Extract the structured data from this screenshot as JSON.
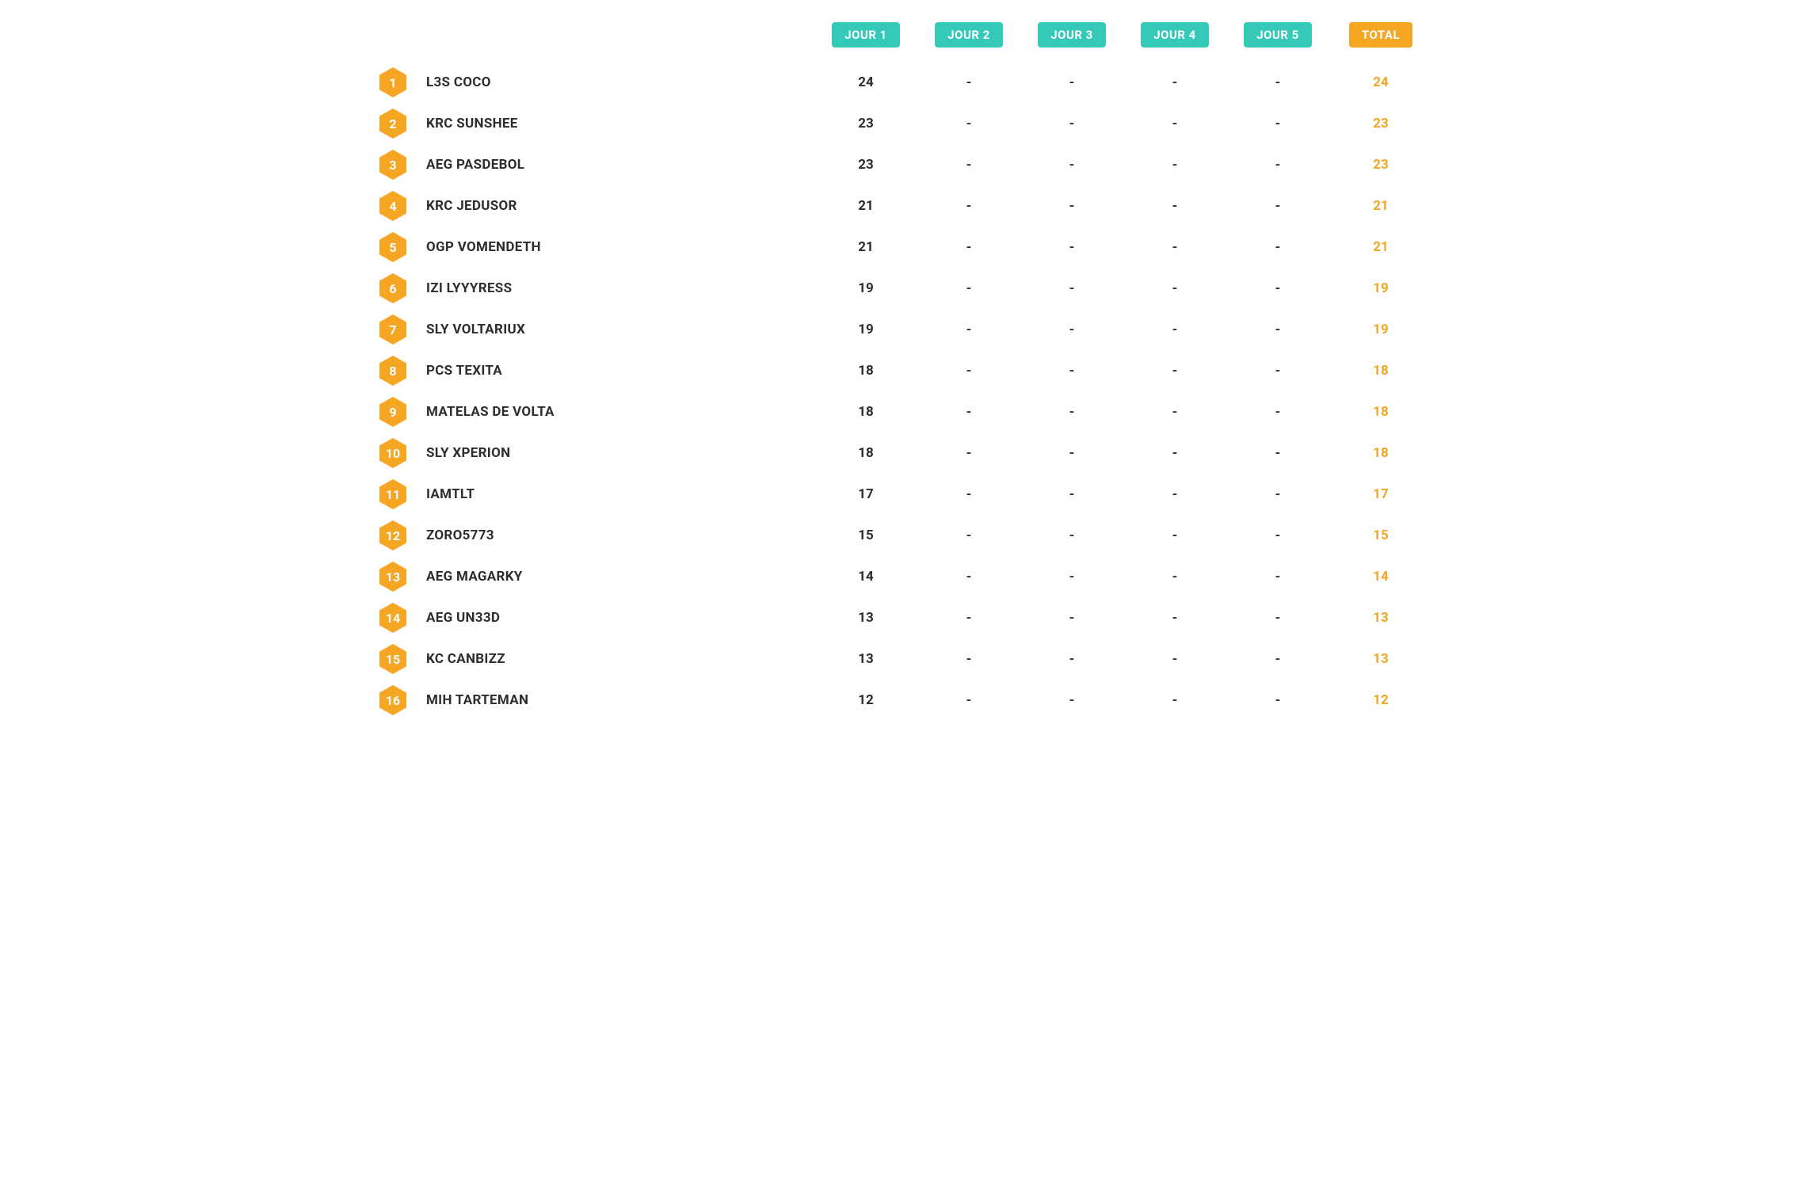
{
  "colors": {
    "day_header_bg": "#35c9b8",
    "total_header_bg": "#f5a623",
    "hexagon_fill": "#f5a623",
    "name_text": "#2d2d2d",
    "score_text": "#2d2d2d",
    "total_text": "#f5a623",
    "background": "#ffffff"
  },
  "table": {
    "type": "table",
    "columns": {
      "rank": "",
      "name": "",
      "day1": "JOUR 1",
      "day2": "JOUR 2",
      "day3": "JOUR 3",
      "day4": "JOUR 4",
      "day5": "JOUR 5",
      "total": "TOTAL"
    },
    "empty_placeholder": "-",
    "rows": [
      {
        "rank": "1",
        "name": "L3S COCO",
        "day1": "24",
        "day2": "-",
        "day3": "-",
        "day4": "-",
        "day5": "-",
        "total": "24"
      },
      {
        "rank": "2",
        "name": "KRC SUNSHEE",
        "day1": "23",
        "day2": "-",
        "day3": "-",
        "day4": "-",
        "day5": "-",
        "total": "23"
      },
      {
        "rank": "3",
        "name": "AEG PASDEBOL",
        "day1": "23",
        "day2": "-",
        "day3": "-",
        "day4": "-",
        "day5": "-",
        "total": "23"
      },
      {
        "rank": "4",
        "name": "KRC JEDUSOR",
        "day1": "21",
        "day2": "-",
        "day3": "-",
        "day4": "-",
        "day5": "-",
        "total": "21"
      },
      {
        "rank": "5",
        "name": "OGP VOMENDETH",
        "day1": "21",
        "day2": "-",
        "day3": "-",
        "day4": "-",
        "day5": "-",
        "total": "21"
      },
      {
        "rank": "6",
        "name": "IZI LYYYRESS",
        "day1": "19",
        "day2": "-",
        "day3": "-",
        "day4": "-",
        "day5": "-",
        "total": "19"
      },
      {
        "rank": "7",
        "name": "SLY VOLTARIUX",
        "day1": "19",
        "day2": "-",
        "day3": "-",
        "day4": "-",
        "day5": "-",
        "total": "19"
      },
      {
        "rank": "8",
        "name": "PCS TEXITA",
        "day1": "18",
        "day2": "-",
        "day3": "-",
        "day4": "-",
        "day5": "-",
        "total": "18"
      },
      {
        "rank": "9",
        "name": "MATELAS DE VOLTA",
        "day1": "18",
        "day2": "-",
        "day3": "-",
        "day4": "-",
        "day5": "-",
        "total": "18"
      },
      {
        "rank": "10",
        "name": "SLY XPERION",
        "day1": "18",
        "day2": "-",
        "day3": "-",
        "day4": "-",
        "day5": "-",
        "total": "18"
      },
      {
        "rank": "11",
        "name": "IAMTLT",
        "day1": "17",
        "day2": "-",
        "day3": "-",
        "day4": "-",
        "day5": "-",
        "total": "17"
      },
      {
        "rank": "12",
        "name": "ZORO5773",
        "day1": "15",
        "day2": "-",
        "day3": "-",
        "day4": "-",
        "day5": "-",
        "total": "15"
      },
      {
        "rank": "13",
        "name": "AEG MAGARKY",
        "day1": "14",
        "day2": "-",
        "day3": "-",
        "day4": "-",
        "day5": "-",
        "total": "14"
      },
      {
        "rank": "14",
        "name": "AEG UN33D",
        "day1": "13",
        "day2": "-",
        "day3": "-",
        "day4": "-",
        "day5": "-",
        "total": "13"
      },
      {
        "rank": "15",
        "name": "KC CANBIZZ",
        "day1": "13",
        "day2": "-",
        "day3": "-",
        "day4": "-",
        "day5": "-",
        "total": "13"
      },
      {
        "rank": "16",
        "name": "MIH TARTEMAN",
        "day1": "12",
        "day2": "-",
        "day3": "-",
        "day4": "-",
        "day5": "-",
        "total": "12"
      }
    ]
  }
}
